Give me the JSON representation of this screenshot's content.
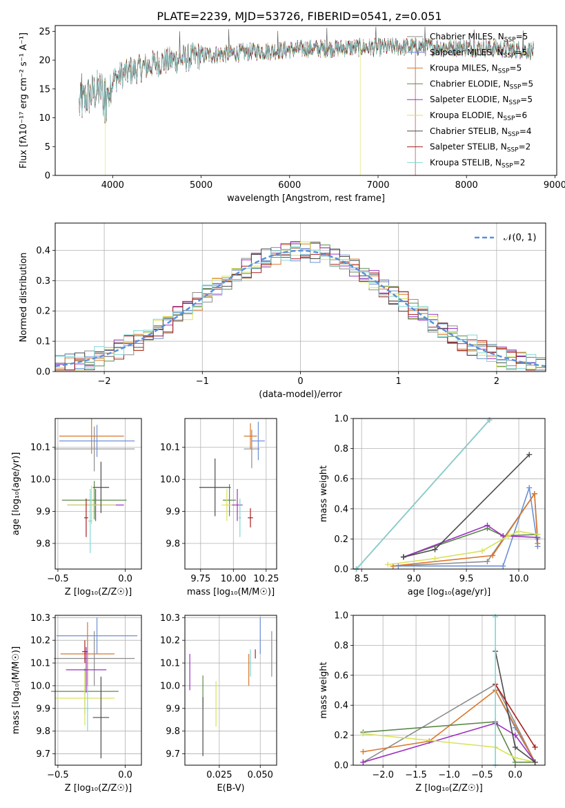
{
  "figure_title": "PLATE=2239, MJD=53726, FIBERID=0541, z=0.051",
  "models": [
    {
      "name": "Chabrier MILES",
      "nssp": "5",
      "color": "#8c8c8c"
    },
    {
      "name": "Salpeter MILES",
      "nssp": "5",
      "color": "#6b8fd6"
    },
    {
      "name": "Kroupa MILES",
      "nssp": "5",
      "color": "#d9772b"
    },
    {
      "name": "Chabrier ELODIE",
      "nssp": "5",
      "color": "#5a8a4a"
    },
    {
      "name": "Salpeter ELODIE",
      "nssp": "5",
      "color": "#9b30c0"
    },
    {
      "name": "Kroupa ELODIE",
      "nssp": "6",
      "color": "#d8e25a"
    },
    {
      "name": "Chabrier STELIB",
      "nssp": "4",
      "color": "#4a4a4a"
    },
    {
      "name": "Salpeter STELIB",
      "nssp": "2",
      "color": "#a81d1d"
    },
    {
      "name": "Kroupa STELIB",
      "nssp": "2",
      "color": "#7fd6d6"
    }
  ],
  "chart_data": [
    {
      "id": "spectrum",
      "type": "line",
      "xlabel": "wavelength [Angstrom, rest frame]",
      "ylabel": "Flux [fλ10⁻¹⁷ erg cm⁻² s⁻¹ A⁻¹]",
      "xlim": [
        3350,
        9020
      ],
      "ylim": [
        0,
        26
      ],
      "xticks": [
        4000,
        5000,
        6000,
        7000,
        8000,
        9000
      ],
      "yticks": [
        0,
        5,
        10,
        15,
        20,
        25
      ],
      "legend_loc": "upper right",
      "x": [
        3620,
        3700,
        3800,
        3900,
        3950,
        4000,
        4100,
        4200,
        4300,
        4400,
        4500,
        4600,
        4700,
        4800,
        4900,
        5000,
        5200,
        5400,
        5600,
        5800,
        6000,
        6200,
        6400,
        6600,
        6800,
        7000,
        7200,
        7400,
        7600,
        7800,
        8000,
        8200,
        8400,
        8600,
        8760
      ],
      "y": [
        12,
        13.5,
        14.5,
        15,
        15.5,
        16.5,
        17.5,
        18,
        18.5,
        19,
        19.5,
        19.8,
        20,
        20.3,
        20.5,
        20.8,
        21,
        21.2,
        21.5,
        21.6,
        21.8,
        22,
        22,
        22.1,
        22.2,
        22.2,
        22.3,
        22.3,
        22.3,
        22.2,
        22.2,
        22.1,
        22,
        21.8,
        21.6
      ],
      "dropouts": [
        {
          "series": "Kroupa ELODIE",
          "x": [
            3920,
            6800
          ]
        },
        {
          "series": "Salpeter STELIB",
          "x": [
            7420
          ]
        }
      ]
    },
    {
      "id": "residuals",
      "type": "histogram",
      "xlabel": "(data-model)/error",
      "ylabel": "Normed distribution",
      "xlim": [
        -2.5,
        2.5
      ],
      "ylim": [
        0,
        0.49
      ],
      "xticks": [
        -2,
        -1,
        0,
        1,
        2
      ],
      "yticks": [
        0.0,
        0.1,
        0.2,
        0.3,
        0.4
      ],
      "legend": "𝒩(0, 1)",
      "legend_loc": "upper right",
      "bin_width": 0.1
    },
    {
      "id": "age_vs_Z",
      "type": "scatter",
      "xlabel": "Z [log₁₀(Z/Z☉)]",
      "ylabel": "age  [log₁₀(age/yr)]",
      "xlim": [
        -0.52,
        0.12
      ],
      "ylim": [
        9.72,
        10.19
      ],
      "xticks": [
        -0.5,
        0.0
      ],
      "yticks": [
        9.8,
        9.9,
        10.0,
        10.1
      ],
      "points": [
        {
          "x": -0.23,
          "y": 10.095,
          "xerr": 0.3,
          "yerr": 0.07
        },
        {
          "x": -0.21,
          "y": 10.12,
          "xerr": 0.28,
          "yerr": 0.05
        },
        {
          "x": -0.25,
          "y": 10.135,
          "xerr": 0.24,
          "yerr": 0.055
        },
        {
          "x": -0.23,
          "y": 9.935,
          "xerr": 0.24,
          "yerr": 0.06
        },
        {
          "x": -0.22,
          "y": 9.92,
          "xerr": 0.21,
          "yerr": 0.05
        },
        {
          "x": -0.25,
          "y": 9.92,
          "xerr": 0.18,
          "yerr": 0.06
        },
        {
          "x": -0.18,
          "y": 9.975,
          "xerr": 0.06,
          "yerr": 0.08
        },
        {
          "x": -0.29,
          "y": 9.88,
          "xerr": 0.015,
          "yerr": 0.06
        },
        {
          "x": -0.26,
          "y": 9.87,
          "xerr": 0.015,
          "yerr": 0.1
        }
      ]
    },
    {
      "id": "age_vs_mass",
      "type": "scatter",
      "xlabel": "mass [log₁₀(M/M☉)]",
      "ylabel": "",
      "xlim": [
        9.63,
        10.33
      ],
      "ylim": [
        9.72,
        10.19
      ],
      "xticks": [
        9.75,
        10.0,
        10.25
      ],
      "yticks": [
        9.8,
        9.9,
        10.0,
        10.1
      ],
      "points": [
        {
          "x": 10.14,
          "y": 10.095,
          "xerr": 0.06,
          "yerr": 0.06
        },
        {
          "x": 10.19,
          "y": 10.12,
          "xerr": 0.05,
          "yerr": 0.06
        },
        {
          "x": 10.13,
          "y": 10.135,
          "xerr": 0.05,
          "yerr": 0.04
        },
        {
          "x": 9.97,
          "y": 9.935,
          "xerr": 0.05,
          "yerr": 0.05
        },
        {
          "x": 10.03,
          "y": 9.92,
          "xerr": 0.04,
          "yerr": 0.05
        },
        {
          "x": 9.95,
          "y": 9.92,
          "xerr": 0.04,
          "yerr": 0.05
        },
        {
          "x": 9.86,
          "y": 9.975,
          "xerr": 0.12,
          "yerr": 0.09
        },
        {
          "x": 10.13,
          "y": 9.88,
          "xerr": 0.02,
          "yerr": 0.03
        },
        {
          "x": 10.05,
          "y": 9.88,
          "xerr": 0.01,
          "yerr": 0.06
        }
      ]
    },
    {
      "id": "massweight_vs_age",
      "type": "line",
      "xlabel": "age  [log₁₀(age/yr)]",
      "ylabel": "mass weight",
      "xlim": [
        8.42,
        10.25
      ],
      "ylim": [
        0,
        1.0
      ],
      "xticks": [
        8.5,
        9.0,
        9.5,
        10.0
      ],
      "yticks": [
        0.0,
        0.2,
        0.4,
        0.6,
        0.8,
        1.0
      ],
      "series": [
        {
          "name": "Chabrier MILES",
          "x": [
            8.8,
            9.7,
            10.15,
            10.18
          ],
          "y": [
            0.02,
            0.05,
            0.5,
            0.2
          ]
        },
        {
          "name": "Salpeter MILES",
          "x": [
            8.85,
            9.85,
            10.1,
            10.18
          ],
          "y": [
            0.02,
            0.02,
            0.54,
            0.15
          ]
        },
        {
          "name": "Kroupa MILES",
          "x": [
            8.8,
            9.75,
            10.15,
            10.18
          ],
          "y": [
            0.02,
            0.09,
            0.5,
            0.17
          ]
        },
        {
          "name": "Chabrier ELODIE",
          "x": [
            8.9,
            9.7,
            9.85,
            10.18
          ],
          "y": [
            0.08,
            0.27,
            0.22,
            0.23
          ]
        },
        {
          "name": "Salpeter ELODIE",
          "x": [
            8.9,
            9.7,
            9.85,
            10.18
          ],
          "y": [
            0.08,
            0.29,
            0.22,
            0.21
          ]
        },
        {
          "name": "Kroupa ELODIE",
          "x": [
            8.75,
            9.2,
            9.65,
            9.9,
            10.0,
            10.18
          ],
          "y": [
            0.03,
            0.07,
            0.12,
            0.22,
            0.25,
            0.23
          ]
        },
        {
          "name": "Chabrier STELIB",
          "x": [
            8.9,
            9.2,
            10.1
          ],
          "y": [
            0.08,
            0.13,
            0.76
          ]
        },
        {
          "name": "Salpeter STELIB",
          "x": [
            8.45,
            9.72
          ],
          "y": [
            0.0,
            0.99
          ]
        },
        {
          "name": "Kroupa STELIB",
          "x": [
            8.45,
            9.72
          ],
          "y": [
            0.0,
            0.99
          ]
        }
      ]
    },
    {
      "id": "mass_vs_Z",
      "type": "scatter",
      "xlabel": "Z [log₁₀(Z/Z☉)]",
      "ylabel": "mass [log₁₀(M/M☉)]",
      "xlim": [
        -0.52,
        0.12
      ],
      "ylim": [
        9.65,
        10.31
      ],
      "xticks": [
        -0.5,
        0.0
      ],
      "yticks": [
        9.7,
        9.8,
        9.9,
        10.0,
        10.1,
        10.2,
        10.3
      ],
      "points": [
        {
          "x": -0.23,
          "y": 10.12,
          "xerr": 0.3,
          "yerr": 0.12
        },
        {
          "x": -0.21,
          "y": 10.22,
          "xerr": 0.3,
          "yerr": 0.08
        },
        {
          "x": -0.28,
          "y": 10.14,
          "xerr": 0.2,
          "yerr": 0.14
        },
        {
          "x": -0.3,
          "y": 9.975,
          "xerr": 0.25,
          "yerr": 0.1
        },
        {
          "x": -0.29,
          "y": 10.07,
          "xerr": 0.15,
          "yerr": 0.1
        },
        {
          "x": -0.3,
          "y": 9.945,
          "xerr": 0.22,
          "yerr": 0.12
        },
        {
          "x": -0.18,
          "y": 9.86,
          "xerr": 0.06,
          "yerr": 0.18
        },
        {
          "x": -0.3,
          "y": 10.15,
          "xerr": 0.02,
          "yerr": 0.05
        },
        {
          "x": -0.28,
          "y": 9.9,
          "xerr": 0.01,
          "yerr": 0.1
        }
      ]
    },
    {
      "id": "mass_vs_ebv",
      "type": "scatter",
      "xlabel": "E(B-V)",
      "ylabel": "",
      "xlim": [
        0.004,
        0.06
      ],
      "ylim": [
        9.65,
        10.31
      ],
      "xticks": [
        0.025,
        0.05
      ],
      "yticks": [
        9.7,
        9.8,
        9.9,
        10.0,
        10.1,
        10.2,
        10.3
      ],
      "points": [
        {
          "x": 0.057,
          "y": 10.14,
          "xerr": 0,
          "yerr": 0.1
        },
        {
          "x": 0.05,
          "y": 10.22,
          "xerr": 0,
          "yerr": 0.08
        },
        {
          "x": 0.043,
          "y": 10.07,
          "xerr": 0,
          "yerr": 0.07
        },
        {
          "x": 0.015,
          "y": 9.975,
          "xerr": 0,
          "yerr": 0.07
        },
        {
          "x": 0.007,
          "y": 10.06,
          "xerr": 0,
          "yerr": 0.08
        },
        {
          "x": 0.023,
          "y": 9.92,
          "xerr": 0,
          "yerr": 0.1
        },
        {
          "x": 0.015,
          "y": 9.82,
          "xerr": 0,
          "yerr": 0.13
        },
        {
          "x": 0.047,
          "y": 10.14,
          "xerr": 0,
          "yerr": 0.02
        },
        {
          "x": 0.044,
          "y": 10.1,
          "xerr": 0,
          "yerr": 0.06
        }
      ]
    },
    {
      "id": "massweight_vs_Z",
      "type": "line",
      "xlabel": "Z [log₁₀(Z/Z☉)]",
      "ylabel": "mass weight",
      "xlim": [
        -2.45,
        0.45
      ],
      "ylim": [
        0,
        1.0
      ],
      "xticks": [
        -2.0,
        -1.5,
        -1.0,
        -0.5,
        0.0
      ],
      "yticks": [
        0.0,
        0.2,
        0.4,
        0.6,
        0.8,
        1.0
      ],
      "series": [
        {
          "name": "Chabrier MILES",
          "x": [
            -2.3,
            -0.3,
            0.3
          ],
          "y": [
            0.02,
            0.54,
            0.02
          ]
        },
        {
          "name": "Salpeter MILES",
          "x": [
            -0.3,
            0.0,
            0.3
          ],
          "y": [
            0.5,
            0.25,
            0.02
          ]
        },
        {
          "name": "Kroupa MILES",
          "x": [
            -2.3,
            -1.3,
            -0.3,
            0.3
          ],
          "y": [
            0.09,
            0.16,
            0.5,
            0.02
          ]
        },
        {
          "name": "Chabrier ELODIE",
          "x": [
            -2.3,
            -0.3,
            0.0,
            0.3
          ],
          "y": [
            0.22,
            0.29,
            0.02,
            0.02
          ]
        },
        {
          "name": "Salpeter ELODIE",
          "x": [
            -2.3,
            -0.3,
            0.0,
            0.3
          ],
          "y": [
            0.02,
            0.28,
            0.2,
            0.02
          ]
        },
        {
          "name": "Kroupa ELODIE",
          "x": [
            -2.3,
            -0.3,
            0.0,
            0.3
          ],
          "y": [
            0.21,
            0.12,
            0.05,
            0.02
          ]
        },
        {
          "name": "Chabrier STELIB",
          "x": [
            -0.3,
            0.0,
            0.3
          ],
          "y": [
            0.76,
            0.12,
            0.02
          ]
        },
        {
          "name": "Salpeter STELIB",
          "x": [
            -0.3,
            0.3
          ],
          "y": [
            0.54,
            0.12
          ]
        },
        {
          "name": "Kroupa STELIB",
          "x": [
            -0.3,
            -0.3
          ],
          "y": [
            0.0,
            0.99
          ]
        }
      ]
    }
  ]
}
